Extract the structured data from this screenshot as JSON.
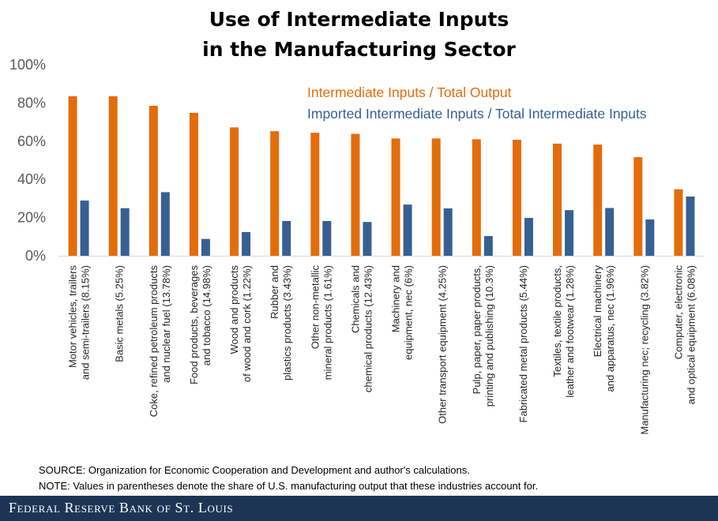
{
  "title_line1": "Use of Intermediate Inputs",
  "title_line2": "in the Manufacturing Sector",
  "source_note": "SOURCE: Organization for Economic Cooperation and Development and author's calculations.",
  "values_note": "NOTE: Values in parentheses denote the share of U.S. manufacturing output that these industries account for.",
  "footer": "Federal Reserve Bank of St. Louis",
  "chart_data": {
    "type": "bar",
    "title": "Use of Intermediate Inputs in the Manufacturing Sector",
    "ylim": [
      0,
      100
    ],
    "y_ticks": [
      "0%",
      "20%",
      "40%",
      "60%",
      "80%",
      "100%"
    ],
    "grid": false,
    "legend_position": "top-right",
    "categories": [
      [
        "Motor vehicles, trailers",
        "and semi-trailers (8.15%)"
      ],
      [
        "Basic metals (5.25%)"
      ],
      [
        "Coke, refined petroleum products",
        "and nuclear fuel (13.78%)"
      ],
      [
        "Food products, beverages",
        "and tobacco (14.98%)"
      ],
      [
        "Wood and products",
        "of wood and cork (1.22%)"
      ],
      [
        "Rubber and",
        "plastics products (3.43%)"
      ],
      [
        "Other non-metallic",
        "mineral products (1.61%)"
      ],
      [
        "Chemicals and",
        "chemical products (12.43%)"
      ],
      [
        "Machinery and",
        "equipment, nec (6%)"
      ],
      [
        "Other transport equipment (4.25%)"
      ],
      [
        "Pulp, paper, paper products,",
        "printing and publishing (10.3%)"
      ],
      [
        "Fabricated metal products (5.44%)"
      ],
      [
        "Textiles, textile products,",
        "leather and footwear (1.28%)"
      ],
      [
        "Electrical machinery",
        "and apparatus, nec (1.96%)"
      ],
      [
        "Manufacturing nec; recycling (3.82%)"
      ],
      [
        "Computer, electronic",
        "and optical equipment (6.08%)"
      ]
    ],
    "series": [
      {
        "name": "Intermediate Inputs / Total Output",
        "color": "#e46c0a",
        "values": [
          83.5,
          83.5,
          78.5,
          74.8,
          67.2,
          65.2,
          64.4,
          63.8,
          61.4,
          61.4,
          61.0,
          60.7,
          58.7,
          58.2,
          51.6,
          34.8
        ]
      },
      {
        "name": "Imported Intermediate Inputs / Total Intermediate Inputs",
        "color": "#376092",
        "values": [
          28.9,
          24.9,
          33.3,
          8.8,
          12.4,
          18.2,
          18.2,
          17.7,
          26.8,
          24.8,
          10.3,
          19.8,
          23.9,
          25.0,
          19.0,
          31.0
        ]
      }
    ]
  }
}
